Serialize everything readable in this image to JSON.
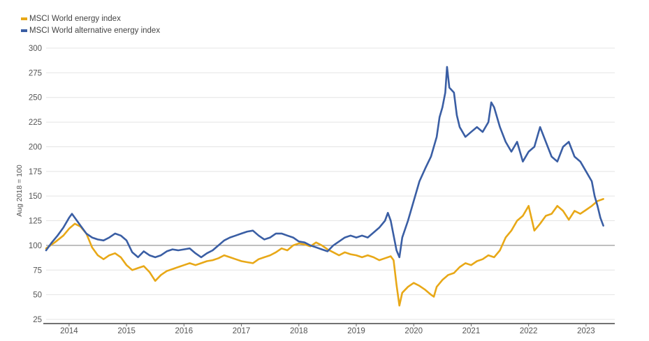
{
  "chart_data": {
    "type": "line",
    "title": "",
    "xlabel": "",
    "ylabel": "Aug 2018 = 100",
    "ylim": [
      25,
      300
    ],
    "xlim": [
      2013.6,
      2023.5
    ],
    "yticks": [
      "25",
      "50",
      "75",
      "100",
      "125",
      "150",
      "175",
      "200",
      "225",
      "250",
      "275",
      "300"
    ],
    "xticks": [
      {
        "label": "2014",
        "x": 2014.0
      },
      {
        "label": "2015",
        "x": 2015.0
      },
      {
        "label": "2016",
        "x": 2016.0
      },
      {
        "label": "2017",
        "x": 2017.0
      },
      {
        "label": "2018",
        "x": 2018.0
      },
      {
        "label": "2019",
        "x": 2019.0
      },
      {
        "label": "2020",
        "x": 2020.0
      },
      {
        "label": "2021",
        "x": 2021.0
      },
      {
        "label": "2022",
        "x": 2022.0
      },
      {
        "label": "2023",
        "x": 2023.0
      }
    ],
    "reference_line": 100,
    "grid": true,
    "legend_position": "top-left",
    "series": [
      {
        "name": "MSCI World energy index",
        "color": "#e8a817",
        "points": [
          [
            2013.6,
            97
          ],
          [
            2013.75,
            103
          ],
          [
            2013.9,
            110
          ],
          [
            2014.0,
            117
          ],
          [
            2014.1,
            122
          ],
          [
            2014.2,
            119
          ],
          [
            2014.3,
            112
          ],
          [
            2014.4,
            98
          ],
          [
            2014.5,
            90
          ],
          [
            2014.6,
            86
          ],
          [
            2014.7,
            90
          ],
          [
            2014.8,
            92
          ],
          [
            2014.9,
            88
          ],
          [
            2015.0,
            80
          ],
          [
            2015.1,
            75
          ],
          [
            2015.2,
            77
          ],
          [
            2015.3,
            79
          ],
          [
            2015.4,
            73
          ],
          [
            2015.5,
            64
          ],
          [
            2015.6,
            70
          ],
          [
            2015.7,
            74
          ],
          [
            2015.8,
            76
          ],
          [
            2015.9,
            78
          ],
          [
            2016.0,
            80
          ],
          [
            2016.1,
            82
          ],
          [
            2016.2,
            80
          ],
          [
            2016.3,
            82
          ],
          [
            2016.4,
            84
          ],
          [
            2016.5,
            85
          ],
          [
            2016.6,
            87
          ],
          [
            2016.7,
            90
          ],
          [
            2016.8,
            88
          ],
          [
            2016.9,
            86
          ],
          [
            2017.0,
            84
          ],
          [
            2017.1,
            83
          ],
          [
            2017.2,
            82
          ],
          [
            2017.3,
            86
          ],
          [
            2017.4,
            88
          ],
          [
            2017.5,
            90
          ],
          [
            2017.6,
            93
          ],
          [
            2017.7,
            97
          ],
          [
            2017.8,
            95
          ],
          [
            2017.9,
            100
          ],
          [
            2018.0,
            102
          ],
          [
            2018.1,
            101
          ],
          [
            2018.2,
            99
          ],
          [
            2018.3,
            103
          ],
          [
            2018.4,
            100
          ],
          [
            2018.5,
            96
          ],
          [
            2018.6,
            93
          ],
          [
            2018.7,
            90
          ],
          [
            2018.8,
            93
          ],
          [
            2018.9,
            91
          ],
          [
            2019.0,
            90
          ],
          [
            2019.1,
            88
          ],
          [
            2019.2,
            90
          ],
          [
            2019.3,
            88
          ],
          [
            2019.4,
            85
          ],
          [
            2019.5,
            87
          ],
          [
            2019.6,
            89
          ],
          [
            2019.65,
            85
          ],
          [
            2019.7,
            60
          ],
          [
            2019.75,
            39
          ],
          [
            2019.8,
            52
          ],
          [
            2019.9,
            58
          ],
          [
            2020.0,
            62
          ],
          [
            2020.1,
            59
          ],
          [
            2020.2,
            55
          ],
          [
            2020.3,
            50
          ],
          [
            2020.35,
            48
          ],
          [
            2020.4,
            58
          ],
          [
            2020.5,
            65
          ],
          [
            2020.6,
            70
          ],
          [
            2020.7,
            72
          ],
          [
            2020.8,
            78
          ],
          [
            2020.9,
            82
          ],
          [
            2021.0,
            80
          ],
          [
            2021.1,
            84
          ],
          [
            2021.2,
            86
          ],
          [
            2021.3,
            90
          ],
          [
            2021.4,
            88
          ],
          [
            2021.5,
            95
          ],
          [
            2021.6,
            108
          ],
          [
            2021.7,
            115
          ],
          [
            2021.8,
            125
          ],
          [
            2021.9,
            130
          ],
          [
            2022.0,
            140
          ],
          [
            2022.1,
            115
          ],
          [
            2022.2,
            122
          ],
          [
            2022.3,
            130
          ],
          [
            2022.4,
            132
          ],
          [
            2022.5,
            140
          ],
          [
            2022.6,
            135
          ],
          [
            2022.7,
            126
          ],
          [
            2022.8,
            135
          ],
          [
            2022.9,
            132
          ],
          [
            2023.0,
            136
          ],
          [
            2023.1,
            140
          ],
          [
            2023.2,
            145
          ],
          [
            2023.3,
            147
          ]
        ]
      },
      {
        "name": "MSCI World alternative energy index",
        "color": "#3a5ea4",
        "points": [
          [
            2013.6,
            95
          ],
          [
            2013.7,
            103
          ],
          [
            2013.8,
            110
          ],
          [
            2013.9,
            118
          ],
          [
            2014.0,
            128
          ],
          [
            2014.05,
            132
          ],
          [
            2014.1,
            128
          ],
          [
            2014.2,
            120
          ],
          [
            2014.3,
            112
          ],
          [
            2014.4,
            108
          ],
          [
            2014.5,
            106
          ],
          [
            2014.6,
            105
          ],
          [
            2014.7,
            108
          ],
          [
            2014.8,
            112
          ],
          [
            2014.9,
            110
          ],
          [
            2015.0,
            105
          ],
          [
            2015.1,
            93
          ],
          [
            2015.2,
            88
          ],
          [
            2015.3,
            94
          ],
          [
            2015.4,
            90
          ],
          [
            2015.5,
            88
          ],
          [
            2015.6,
            90
          ],
          [
            2015.7,
            94
          ],
          [
            2015.8,
            96
          ],
          [
            2015.9,
            95
          ],
          [
            2016.0,
            96
          ],
          [
            2016.1,
            97
          ],
          [
            2016.2,
            92
          ],
          [
            2016.3,
            88
          ],
          [
            2016.4,
            92
          ],
          [
            2016.5,
            95
          ],
          [
            2016.6,
            100
          ],
          [
            2016.7,
            105
          ],
          [
            2016.8,
            108
          ],
          [
            2016.9,
            110
          ],
          [
            2017.0,
            112
          ],
          [
            2017.1,
            114
          ],
          [
            2017.2,
            115
          ],
          [
            2017.3,
            110
          ],
          [
            2017.4,
            106
          ],
          [
            2017.5,
            108
          ],
          [
            2017.6,
            112
          ],
          [
            2017.7,
            112
          ],
          [
            2017.8,
            110
          ],
          [
            2017.9,
            108
          ],
          [
            2018.0,
            104
          ],
          [
            2018.1,
            103
          ],
          [
            2018.2,
            100
          ],
          [
            2018.3,
            98
          ],
          [
            2018.4,
            96
          ],
          [
            2018.5,
            94
          ],
          [
            2018.6,
            100
          ],
          [
            2018.7,
            104
          ],
          [
            2018.8,
            108
          ],
          [
            2018.9,
            110
          ],
          [
            2019.0,
            108
          ],
          [
            2019.1,
            110
          ],
          [
            2019.2,
            108
          ],
          [
            2019.3,
            113
          ],
          [
            2019.4,
            118
          ],
          [
            2019.5,
            125
          ],
          [
            2019.55,
            133
          ],
          [
            2019.6,
            125
          ],
          [
            2019.7,
            95
          ],
          [
            2019.75,
            88
          ],
          [
            2019.8,
            108
          ],
          [
            2019.9,
            125
          ],
          [
            2020.0,
            145
          ],
          [
            2020.1,
            165
          ],
          [
            2020.2,
            178
          ],
          [
            2020.3,
            190
          ],
          [
            2020.4,
            210
          ],
          [
            2020.45,
            230
          ],
          [
            2020.5,
            240
          ],
          [
            2020.55,
            255
          ],
          [
            2020.58,
            281
          ],
          [
            2020.62,
            260
          ],
          [
            2020.7,
            255
          ],
          [
            2020.75,
            232
          ],
          [
            2020.8,
            220
          ],
          [
            2020.9,
            210
          ],
          [
            2021.0,
            215
          ],
          [
            2021.1,
            220
          ],
          [
            2021.2,
            215
          ],
          [
            2021.3,
            225
          ],
          [
            2021.35,
            245
          ],
          [
            2021.4,
            240
          ],
          [
            2021.5,
            220
          ],
          [
            2021.6,
            205
          ],
          [
            2021.7,
            195
          ],
          [
            2021.8,
            205
          ],
          [
            2021.9,
            185
          ],
          [
            2022.0,
            195
          ],
          [
            2022.1,
            200
          ],
          [
            2022.2,
            220
          ],
          [
            2022.3,
            205
          ],
          [
            2022.4,
            190
          ],
          [
            2022.5,
            185
          ],
          [
            2022.6,
            200
          ],
          [
            2022.7,
            205
          ],
          [
            2022.8,
            190
          ],
          [
            2022.9,
            185
          ],
          [
            2023.0,
            175
          ],
          [
            2023.1,
            165
          ],
          [
            2023.15,
            150
          ],
          [
            2023.2,
            140
          ],
          [
            2023.25,
            128
          ],
          [
            2023.3,
            120
          ]
        ]
      }
    ]
  }
}
